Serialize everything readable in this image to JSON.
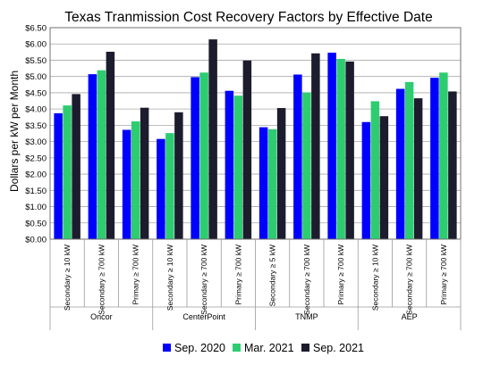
{
  "chart_data": {
    "type": "bar",
    "title": "Texas Tranmission Cost Recovery Factors by Effective Date",
    "ylabel": "Dollars per kW per Month",
    "xlabel": "",
    "ylim": [
      0,
      6.5
    ],
    "ytick_step": 0.5,
    "ytick_labels": [
      "$0.00",
      "$0.50",
      "$1.00",
      "$1.50",
      "$2.00",
      "$2.50",
      "$3.00",
      "$3.50",
      "$4.00",
      "$4.50",
      "$5.00",
      "$5.50",
      "$6.00",
      "$6.50"
    ],
    "grid": true,
    "legend_position": "bottom",
    "groups": [
      {
        "name": "Oncor",
        "categories": [
          "Secondary ≥ 10 kW",
          "Secondary ≥ 700 kW",
          "Primary ≥ 700 kW"
        ]
      },
      {
        "name": "CenterPoint",
        "categories": [
          "Secondary ≥ 10 kW",
          "Secondary ≥ 700 kW",
          "Primary ≥ 700 kW"
        ]
      },
      {
        "name": "TNMP",
        "categories": [
          "Secondary ≥ 5 kW",
          "Secondary ≥ 700 kW",
          "Primary ≥ 700 kW"
        ]
      },
      {
        "name": "AEP",
        "categories": [
          "Secondary ≥ 10 kW",
          "Secondary ≥ 700 kW",
          "Primary ≥ 700 kW"
        ]
      }
    ],
    "series": [
      {
        "name": "Sep. 2020",
        "color": "#0000ff",
        "values": [
          3.87,
          5.07,
          3.36,
          3.08,
          4.98,
          4.56,
          3.44,
          5.06,
          5.73,
          3.6,
          4.62,
          4.96
        ]
      },
      {
        "name": "Mar. 2021",
        "color": "#2ecc71",
        "values": [
          4.11,
          5.19,
          3.62,
          3.26,
          5.12,
          4.41,
          3.38,
          4.51,
          5.54,
          4.24,
          4.83,
          5.12
        ]
      },
      {
        "name": "Sep. 2021",
        "color": "#1c1c2e",
        "values": [
          4.46,
          5.76,
          4.04,
          3.9,
          6.14,
          5.49,
          4.03,
          5.71,
          5.46,
          3.78,
          4.33,
          4.54
        ]
      }
    ]
  }
}
